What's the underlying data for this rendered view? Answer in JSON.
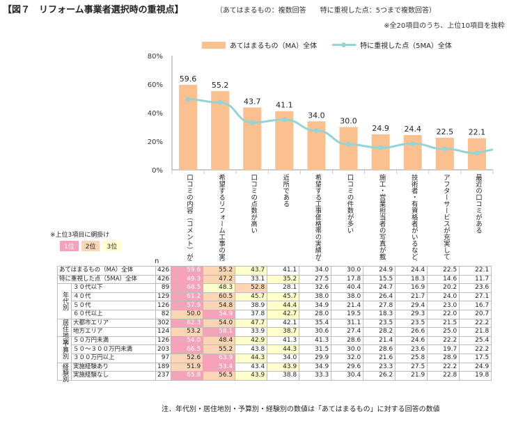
{
  "header": {
    "title": "【図７　リフォーム事業者選択時の重視点】",
    "title_note": "（あてはまるもの：複数回答　　特に重視した点：5つまで複数回答）",
    "subnote": "※全20項目のうち、上位10項目を抜粋"
  },
  "legend": {
    "bar": "あてはまるもの（MA）全体",
    "line": "特に重視した点（5MA）全体"
  },
  "rank_legend": {
    "title": "※上位3項目に網掛け",
    "r1": "1位",
    "r2": "2位",
    "r3": "3位"
  },
  "table_head": {
    "n": "n"
  },
  "footnote": "注．年代別・居住地別・予算別・経験別の数値は「あてはまるもの」に対する回答の数値",
  "colors": {
    "bar": "#fac090",
    "line": "#93d4d6",
    "rank1": "#f4a3b8",
    "rank2": "#fcd5b4",
    "rank3": "#ffffcc"
  },
  "chart_data": {
    "type": "bar",
    "categories": [
      "口コミの内容（コメント）が良い",
      "希望するリフォーム工事の実績が多い",
      "口コミの点数が高い",
      "近所である",
      "希望する工事価格帯の実績が多い",
      "口コミの件数が多い",
      "施工・営業担当者の写真が載っていて、親しみが持てる",
      "技術者・有資格者がいるなど、工事品質が期待できる",
      "アフターサービスが充実している",
      "最近の口コミがある"
    ],
    "series": [
      {
        "name": "あてはまるもの（MA）全体",
        "type": "bar",
        "values": [
          59.6,
          55.2,
          43.7,
          41.1,
          34.0,
          30.0,
          24.9,
          24.4,
          22.5,
          22.1
        ]
      },
      {
        "name": "特に重視した点（5MA）全体",
        "type": "line",
        "values": [
          49.3,
          47.2,
          33.1,
          35.2,
          27.5,
          17.8,
          15.5,
          18.3,
          14.6,
          11.7
        ]
      }
    ],
    "yticks": [
      "0%",
      "20%",
      "40%",
      "60%",
      "80%"
    ],
    "ylim": [
      0,
      80
    ],
    "data_labels": [
      "59.6",
      "55.2",
      "43.7",
      "41.1",
      "34.0",
      "30.0",
      "24.9",
      "24.4",
      "22.5",
      "22.1"
    ]
  },
  "table": {
    "rows": [
      {
        "group": "",
        "label": "あてはまるもの（MA）全体",
        "n": "426",
        "values": [
          "59.6",
          "55.2",
          "43.7",
          "41.1",
          "34.0",
          "30.0",
          "24.9",
          "24.4",
          "22.5",
          "22.1"
        ],
        "ranks": [
          1,
          2,
          3,
          0,
          0,
          0,
          0,
          0,
          0,
          0
        ]
      },
      {
        "group": "",
        "label": "特に重視した点（5MA）全体",
        "n": "426",
        "values": [
          "49.3",
          "47.2",
          "33.1",
          "35.2",
          "27.5",
          "17.8",
          "15.5",
          "18.3",
          "14.6",
          "11.7"
        ],
        "ranks": [
          1,
          2,
          0,
          3,
          0,
          0,
          0,
          0,
          0,
          0
        ]
      },
      {
        "group": "年代別",
        "label": "３０代以下",
        "n": "89",
        "values": [
          "68.5",
          "48.3",
          "52.8",
          "28.1",
          "32.6",
          "40.4",
          "24.7",
          "16.9",
          "20.2",
          "23.6"
        ],
        "ranks": [
          1,
          3,
          2,
          0,
          0,
          0,
          0,
          0,
          0,
          0
        ]
      },
      {
        "group": "",
        "label": "４０代",
        "n": "129",
        "values": [
          "61.2",
          "60.5",
          "45.7",
          "45.7",
          "38.0",
          "38.0",
          "26.4",
          "21.7",
          "24.0",
          "27.1"
        ],
        "ranks": [
          1,
          2,
          3,
          3,
          0,
          0,
          0,
          0,
          0,
          0
        ]
      },
      {
        "group": "",
        "label": "５０代",
        "n": "126",
        "values": [
          "57.9",
          "54.8",
          "38.9",
          "44.4",
          "34.9",
          "21.4",
          "27.8",
          "29.4",
          "23.0",
          "16.7"
        ],
        "ranks": [
          1,
          2,
          0,
          3,
          0,
          0,
          0,
          0,
          0,
          0
        ]
      },
      {
        "group": "",
        "label": "６０代以上",
        "n": "82",
        "values": [
          "50.0",
          "54.9",
          "37.8",
          "42.7",
          "28.0",
          "19.5",
          "18.3",
          "29.3",
          "22.0",
          "20.7"
        ],
        "ranks": [
          2,
          1,
          0,
          3,
          0,
          0,
          0,
          0,
          0,
          0
        ]
      },
      {
        "group": "居住地別",
        "label": "大都市エリア",
        "n": "302",
        "values": [
          "62.3",
          "54.0",
          "47.7",
          "42.1",
          "35.4",
          "31.1",
          "23.5",
          "23.5",
          "21.5",
          "22.2"
        ],
        "ranks": [
          1,
          2,
          3,
          0,
          0,
          0,
          0,
          0,
          0,
          0
        ]
      },
      {
        "group": "",
        "label": "地方エリア",
        "n": "124",
        "values": [
          "53.2",
          "58.1",
          "33.9",
          "38.7",
          "30.6",
          "27.4",
          "28.2",
          "26.6",
          "25.0",
          "21.8"
        ],
        "ranks": [
          2,
          1,
          0,
          3,
          0,
          0,
          0,
          0,
          0,
          0
        ]
      },
      {
        "group": "予算別",
        "label": "５０万円未満",
        "n": "126",
        "values": [
          "54.0",
          "48.4",
          "42.9",
          "41.3",
          "41.3",
          "28.6",
          "21.4",
          "24.6",
          "22.2",
          "25.4"
        ],
        "ranks": [
          1,
          2,
          3,
          0,
          0,
          0,
          0,
          0,
          0,
          0
        ]
      },
      {
        "group": "",
        "label": "５０～３００万円未満",
        "n": "203",
        "values": [
          "66.5",
          "55.2",
          "43.8",
          "44.3",
          "31.5",
          "30.0",
          "28.6",
          "23.6",
          "19.7",
          "22.2"
        ],
        "ranks": [
          1,
          2,
          0,
          3,
          0,
          0,
          0,
          0,
          0,
          0
        ]
      },
      {
        "group": "",
        "label": "３００万円以上",
        "n": "97",
        "values": [
          "52.6",
          "63.9",
          "44.3",
          "34.0",
          "29.9",
          "32.0",
          "21.6",
          "25.8",
          "28.9",
          "17.5"
        ],
        "ranks": [
          2,
          1,
          3,
          0,
          0,
          0,
          0,
          0,
          0,
          0
        ]
      },
      {
        "group": "経験別",
        "label": "実施経験あり",
        "n": "189",
        "values": [
          "51.9",
          "53.4",
          "43.4",
          "43.9",
          "34.9",
          "29.6",
          "23.3",
          "27.5",
          "22.2",
          "24.9"
        ],
        "ranks": [
          2,
          1,
          0,
          3,
          0,
          0,
          0,
          0,
          0,
          0
        ]
      },
      {
        "group": "",
        "label": "実施経験なし",
        "n": "237",
        "values": [
          "65.8",
          "56.5",
          "43.9",
          "38.8",
          "33.3",
          "30.4",
          "26.2",
          "21.9",
          "22.8",
          "19.8"
        ],
        "ranks": [
          1,
          2,
          3,
          0,
          0,
          0,
          0,
          0,
          0,
          0
        ]
      }
    ],
    "groups": [
      {
        "label": "年代別",
        "start": 2,
        "span": 4
      },
      {
        "label": "居住地別",
        "start": 6,
        "span": 2
      },
      {
        "label": "予算別",
        "start": 8,
        "span": 3
      },
      {
        "label": "経験別",
        "start": 11,
        "span": 2
      }
    ]
  }
}
